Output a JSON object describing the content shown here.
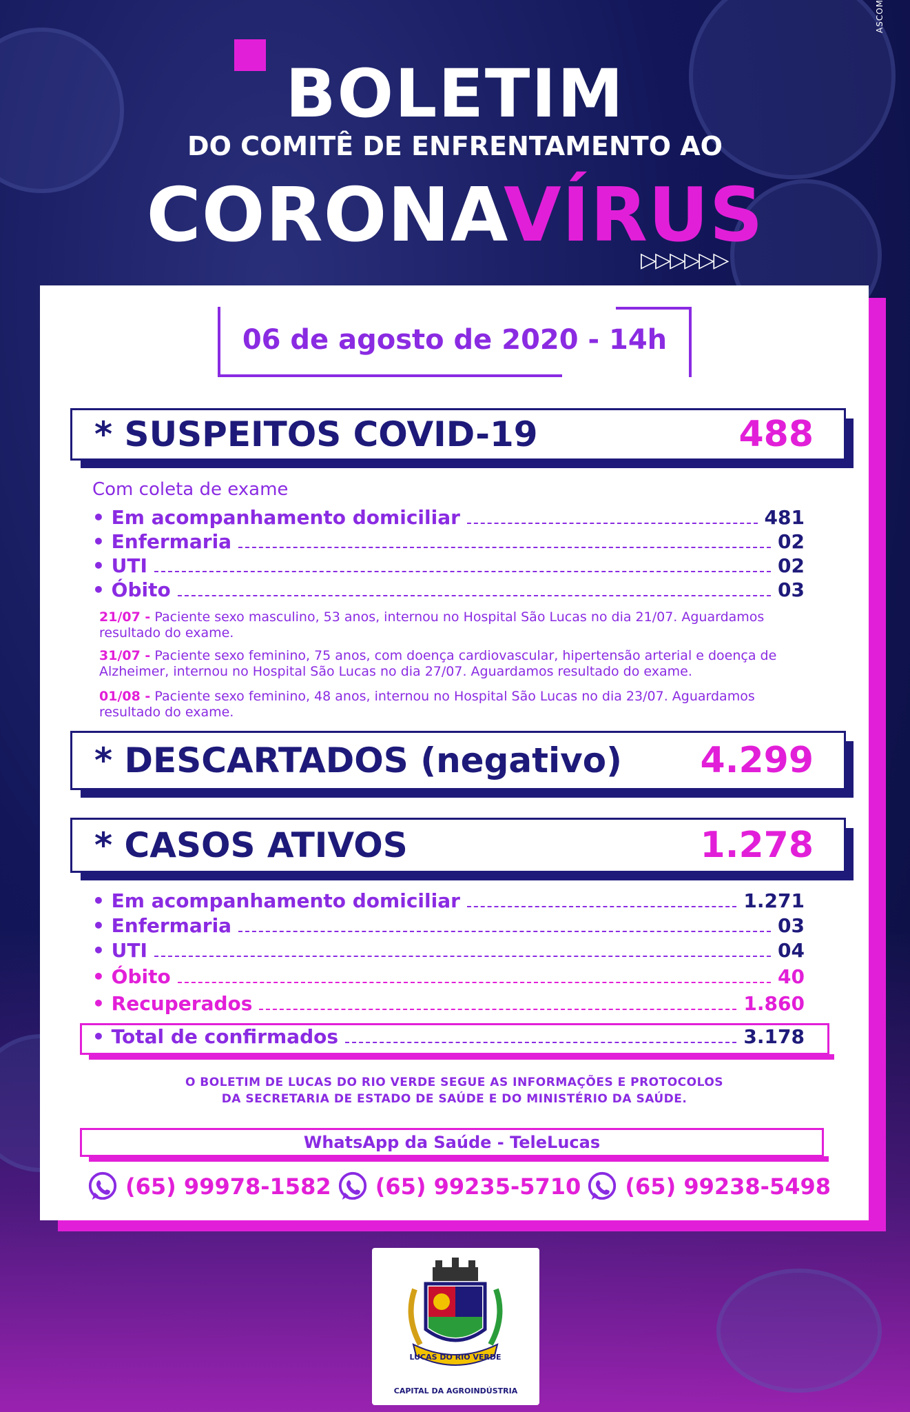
{
  "header": {
    "ascom": "ASCOM",
    "boletim": "BOLETIM",
    "subtitle": "DO COMITÊ DE ENFRENTAMENTO AO",
    "corona_white": "CORONA",
    "corona_pink": "VÍRUS",
    "arrows": "▷▷▷▷▷▷"
  },
  "date": "06 de agosto de 2020 - 14h",
  "suspeitos": {
    "label": "* SUSPEITOS COVID-19",
    "value": "488",
    "subheading": "Com coleta de exame",
    "rows": [
      {
        "label": "• Em acompanhamento domiciliar",
        "value": "481"
      },
      {
        "label": "• Enfermaria",
        "value": "02"
      },
      {
        "label": "• UTI",
        "value": "02"
      },
      {
        "label": "• Óbito",
        "value": "03"
      }
    ],
    "notes": [
      {
        "date": "21/07 -",
        "text": " Paciente sexo masculino, 53 anos, internou no Hospital São Lucas no dia 21/07. Aguardamos resultado do exame."
      },
      {
        "date": "31/07 -",
        "text": " Paciente sexo feminino, 75 anos, com doença cardiovascular, hipertensão arterial e doença de Alzheimer, internou no Hospital São Lucas no dia 27/07. Aguardamos resultado do exame."
      },
      {
        "date": "01/08 -",
        "text": " Paciente sexo feminino, 48 anos, internou no Hospital São Lucas no dia 23/07. Aguardamos resultado do exame."
      }
    ]
  },
  "descartados": {
    "label": "* DESCARTADOS (negativo)",
    "value": "4.299"
  },
  "ativos": {
    "label": "* CASOS ATIVOS",
    "value": "1.278",
    "rows": [
      {
        "label": "• Em acompanhamento domiciliar",
        "value": "1.271"
      },
      {
        "label": "• Enfermaria",
        "value": "03"
      },
      {
        "label": "• UTI",
        "value": "04"
      },
      {
        "label": "• Óbito",
        "value": "40"
      },
      {
        "label": "• Recuperados",
        "value": "1.860"
      }
    ],
    "total": {
      "label": "• Total de confirmados",
      "value": "3.178"
    }
  },
  "footer": {
    "line1": "O BOLETIM DE LUCAS DO RIO VERDE SEGUE AS INFORMAÇÕES E PROTOCOLOS",
    "line2": "DA SECRETARIA DE ESTADO DE SAÚDE E DO MINISTÉRIO DA SAÚDE.",
    "whatsapp_title": "WhatsApp da Saúde - TeleLucas",
    "phones": [
      "(65) 99978-1582",
      "(65) 99235-5710",
      "(65) 99238-5498"
    ]
  },
  "logo": {
    "ribbon": "LUCAS DO RIO VERDE",
    "caption": "CAPITAL DA AGROINDÚSTRIA"
  },
  "colors": {
    "navy": "#1e1a7a",
    "purple": "#8a2be2",
    "pink": "#e21fd8"
  }
}
